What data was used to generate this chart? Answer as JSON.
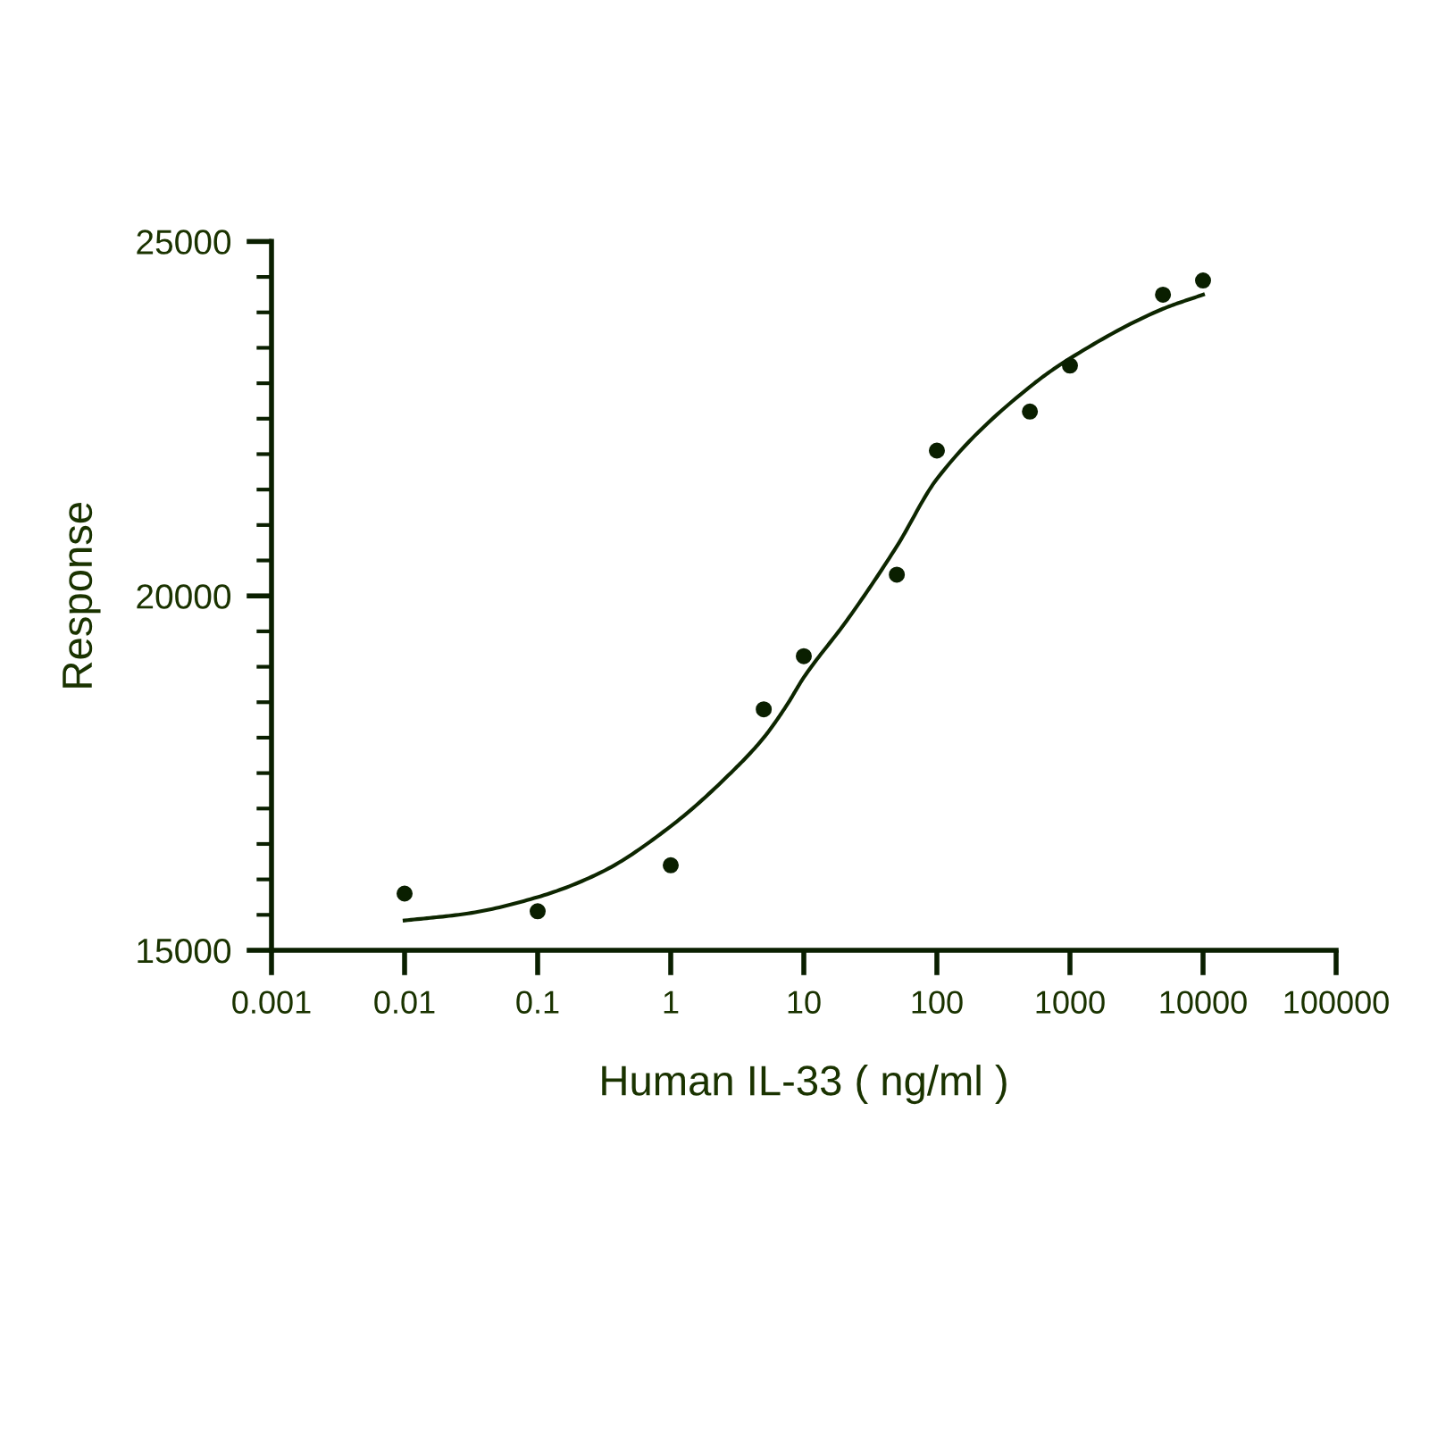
{
  "chart_data": {
    "type": "scatter",
    "xlabel": "Human IL-33 ( ng/ml )",
    "ylabel": "Response",
    "log": "x",
    "grid": false,
    "legend": false,
    "marker": "circle",
    "xlim": [
      0.001,
      100000
    ],
    "xticks": [
      0.001,
      0.01,
      0.1,
      1,
      10,
      100,
      1000,
      10000,
      100000
    ],
    "ylim": [
      15000,
      25000
    ],
    "yticks": [
      15000,
      {
        "value": 15500,
        "label": null
      },
      {
        "value": 16000,
        "label": null
      },
      {
        "value": 16500,
        "label": null
      },
      {
        "value": 17000,
        "label": null
      },
      {
        "value": 17500,
        "label": null
      },
      {
        "value": 18000,
        "label": null
      },
      {
        "value": 18500,
        "label": null
      },
      {
        "value": 19000,
        "label": null
      },
      {
        "value": 19500,
        "label": null
      },
      20000,
      {
        "value": 20500,
        "label": null
      },
      {
        "value": 21000,
        "label": null
      },
      {
        "value": 21500,
        "label": null
      },
      {
        "value": 22000,
        "label": null
      },
      {
        "value": 22500,
        "label": null
      },
      {
        "value": 23000,
        "label": null
      },
      {
        "value": 23500,
        "label": null
      },
      {
        "value": 24000,
        "label": null
      },
      {
        "value": 24500,
        "label": null
      },
      25000
    ],
    "series": [
      {
        "color": "#0a1f00",
        "x": [
          0.01,
          0.1,
          1,
          5,
          10,
          50,
          100,
          500,
          1000,
          5000,
          10000
        ],
        "values": [
          15800,
          15550,
          16200,
          18400,
          19150,
          20300,
          22050,
          22600,
          23250,
          24250,
          24450
        ]
      },
      {
        "type": "line",
        "color": "#0d2600",
        "marker": "none",
        "line_style": "solid",
        "x": [
          0.01,
          0.03,
          0.1,
          0.3,
          1,
          3,
          5,
          7.4,
          10,
          21,
          50,
          100,
          500,
          1000,
          5000,
          10000
        ],
        "values": [
          15420,
          15520,
          15750,
          16100,
          16750,
          17550,
          18000,
          18450,
          18850,
          19650,
          20700,
          21650,
          22950,
          23350,
          24050,
          24250
        ]
      }
    ]
  }
}
